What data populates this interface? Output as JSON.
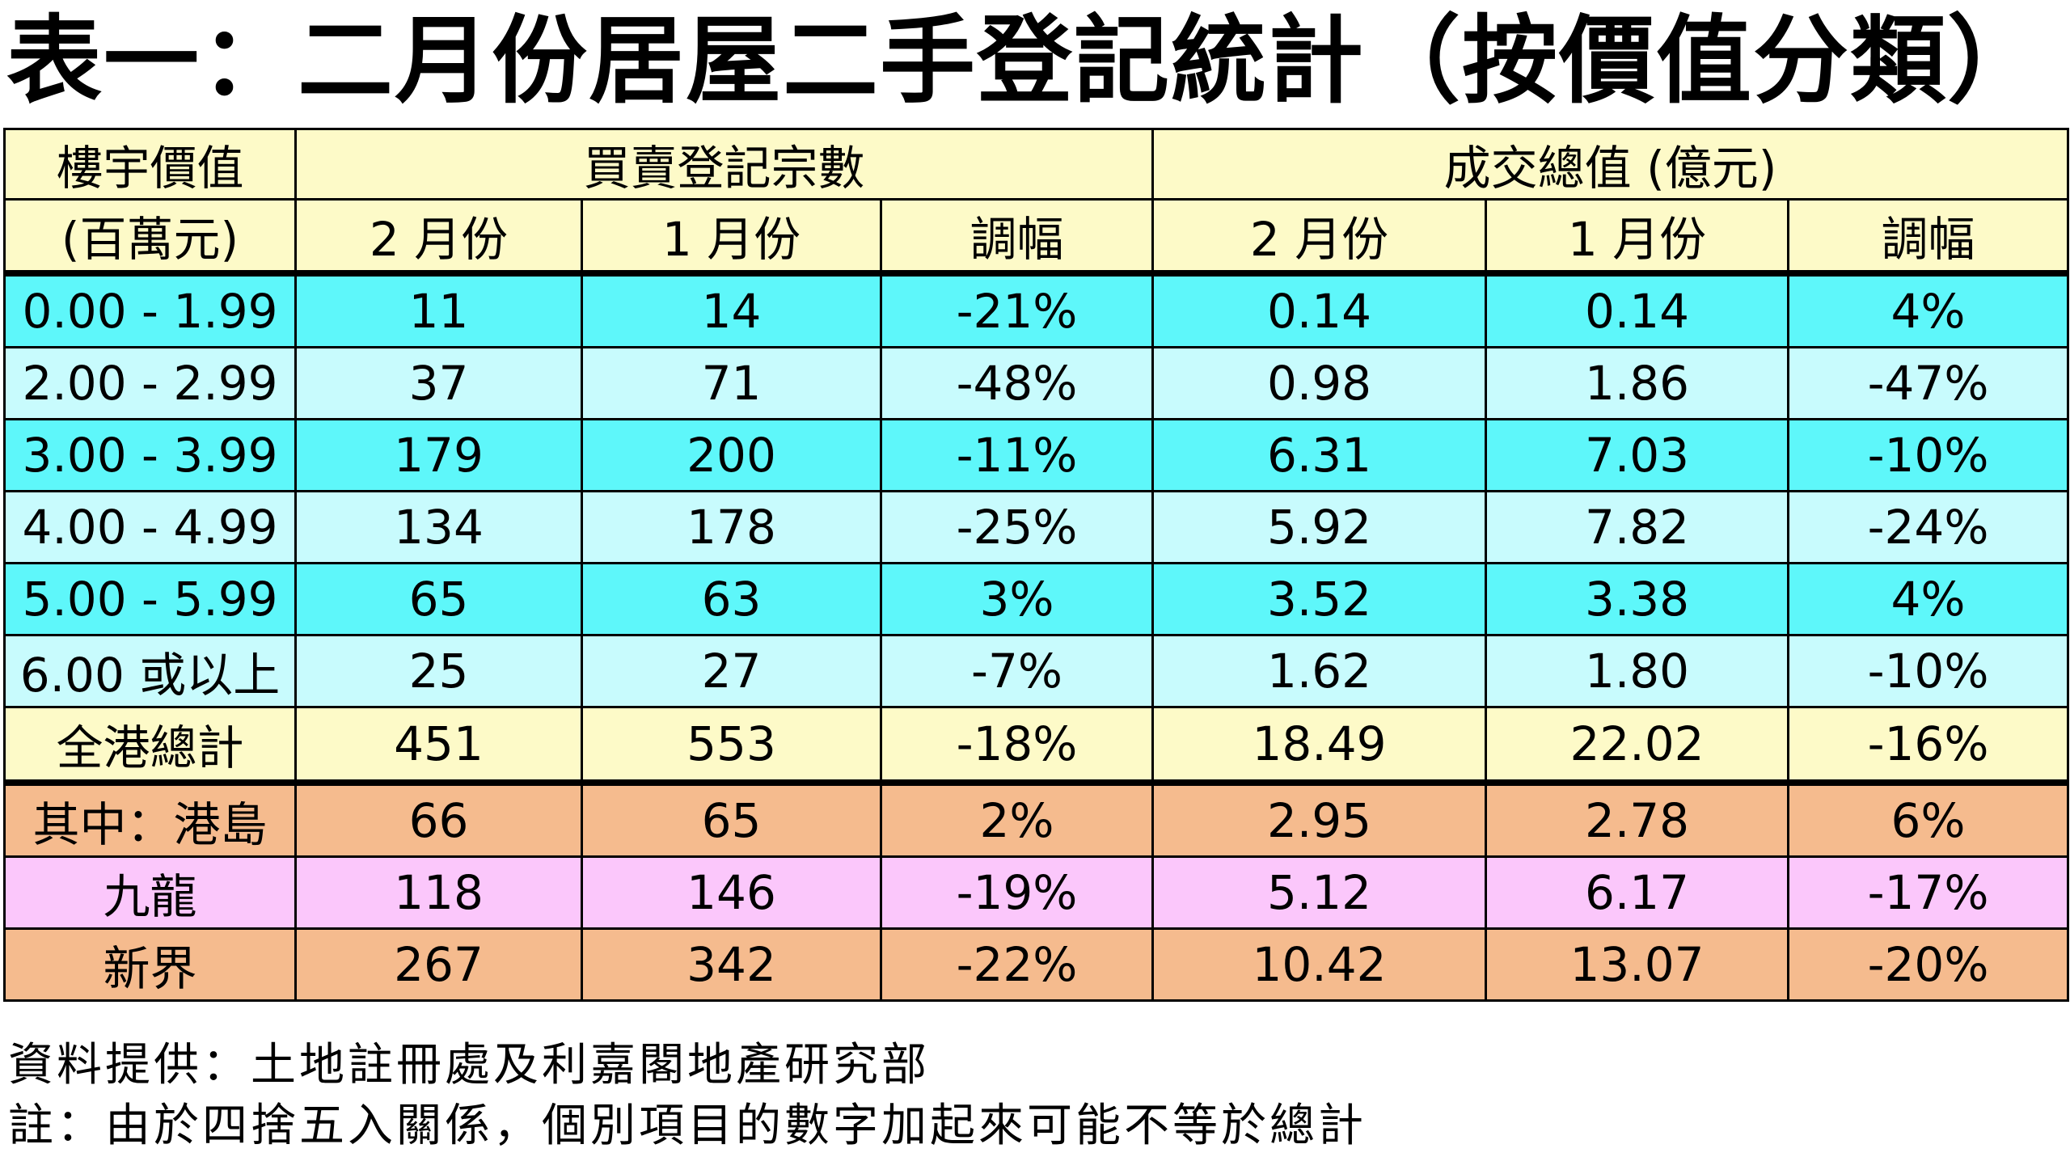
{
  "title": "表一：二月份居屋二手登記統計（按價值分類）",
  "header": {
    "value_col": "樓宇價值",
    "value_unit": "(百萬元)",
    "group_count": "買賣登記宗數",
    "group_value": "成交總值 (億元)",
    "feb": "2 月份",
    "jan": "1 月份",
    "change": "調幅"
  },
  "rows": [
    {
      "label": "0.00 - 1.99",
      "cnt_feb": "11",
      "cnt_jan": "14",
      "cnt_chg": "-21%",
      "val_feb": "0.14",
      "val_jan": "0.14",
      "val_chg": "4%"
    },
    {
      "label": "2.00 - 2.99",
      "cnt_feb": "37",
      "cnt_jan": "71",
      "cnt_chg": "-48%",
      "val_feb": "0.98",
      "val_jan": "1.86",
      "val_chg": "-47%"
    },
    {
      "label": "3.00 - 3.99",
      "cnt_feb": "179",
      "cnt_jan": "200",
      "cnt_chg": "-11%",
      "val_feb": "6.31",
      "val_jan": "7.03",
      "val_chg": "-10%"
    },
    {
      "label": "4.00 - 4.99",
      "cnt_feb": "134",
      "cnt_jan": "178",
      "cnt_chg": "-25%",
      "val_feb": "5.92",
      "val_jan": "7.82",
      "val_chg": "-24%"
    },
    {
      "label": "5.00 - 5.99",
      "cnt_feb": "65",
      "cnt_jan": "63",
      "cnt_chg": "3%",
      "val_feb": "3.52",
      "val_jan": "3.38",
      "val_chg": "4%"
    },
    {
      "label": "6.00 或以上",
      "cnt_feb": "25",
      "cnt_jan": "27",
      "cnt_chg": "-7%",
      "val_feb": "1.62",
      "val_jan": "1.80",
      "val_chg": "-10%"
    }
  ],
  "total": {
    "label": "全港總計",
    "cnt_feb": "451",
    "cnt_jan": "553",
    "cnt_chg": "-18%",
    "val_feb": "18.49",
    "val_jan": "22.02",
    "val_chg": "-16%"
  },
  "regions": [
    {
      "label": "其中：港島",
      "cnt_feb": "66",
      "cnt_jan": "65",
      "cnt_chg": "2%",
      "val_feb": "2.95",
      "val_jan": "2.78",
      "val_chg": "6%"
    },
    {
      "label": "九龍",
      "cnt_feb": "118",
      "cnt_jan": "146",
      "cnt_chg": "-19%",
      "val_feb": "5.12",
      "val_jan": "6.17",
      "val_chg": "-17%"
    },
    {
      "label": "新界",
      "cnt_feb": "267",
      "cnt_jan": "342",
      "cnt_chg": "-22%",
      "val_feb": "10.42",
      "val_jan": "13.07",
      "val_chg": "-20%"
    }
  ],
  "notes": {
    "source": "資料提供：土地註冊處及利嘉閣地產研究部",
    "remark": "註：由於四捨五入關係，個別項目的數字加起來可能不等於總計"
  },
  "colors": {
    "header_bg": "#fdfac8",
    "row_dark": "#5ef7fa",
    "row_light": "#c8fbfd",
    "total_bg": "#fdfac8",
    "orange_bg": "#f5bb8e",
    "pink_bg": "#fbc7fb"
  }
}
